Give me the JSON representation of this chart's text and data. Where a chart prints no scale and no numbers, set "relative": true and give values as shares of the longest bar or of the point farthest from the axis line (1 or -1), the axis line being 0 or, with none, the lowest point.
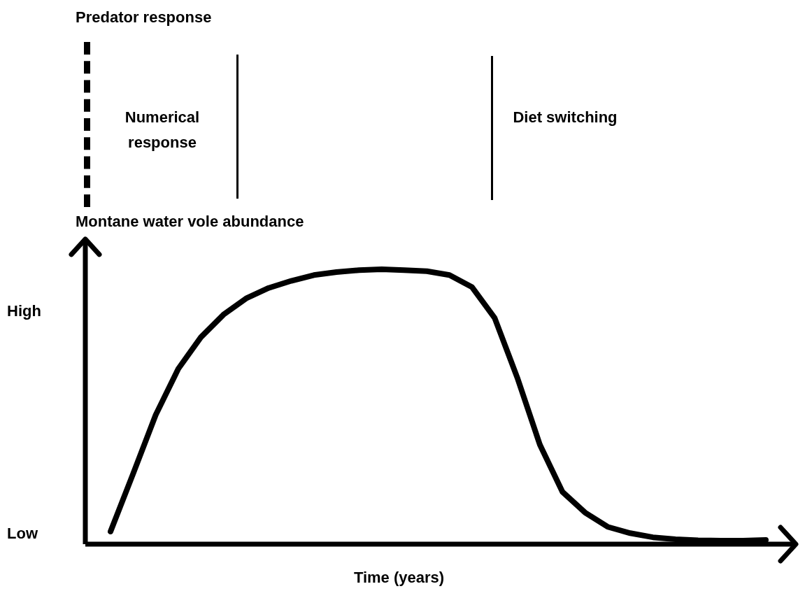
{
  "chart_data": [
    {
      "type": "other",
      "title": "Predator response",
      "annotations": [
        "Numerical response",
        "Diet switching"
      ]
    },
    {
      "type": "line",
      "ylabel": "Montane water vole abundance",
      "xlabel": "Time (years)",
      "relative": true,
      "color": "#000000",
      "annotations": [
        "High",
        "Low"
      ],
      "categories": [
        null,
        null,
        null,
        null,
        null,
        null,
        null,
        null,
        null,
        null,
        null,
        null,
        null,
        null,
        null,
        null,
        null,
        null,
        null,
        null,
        null,
        null,
        null,
        null,
        null,
        null,
        null,
        null,
        null,
        null
      ],
      "values": [
        0.046,
        0.256,
        0.47,
        0.638,
        0.753,
        0.835,
        0.894,
        0.932,
        0.958,
        0.979,
        0.99,
        0.997,
        1,
        0.997,
        0.993,
        0.979,
        0.935,
        0.823,
        0.606,
        0.362,
        0.19,
        0.115,
        0.063,
        0.04,
        0.025,
        0.018,
        0.014,
        0.013,
        0.013,
        0.015
      ]
    }
  ]
}
